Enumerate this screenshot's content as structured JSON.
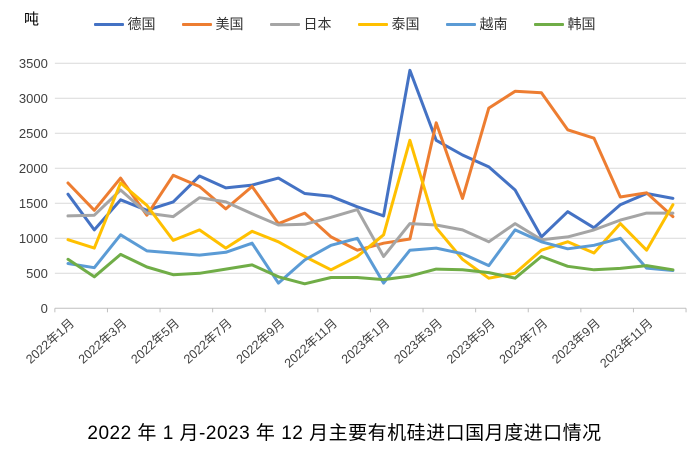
{
  "unit_label": "吨",
  "title": "2022 年 1 月-2023 年 12 月主要有机硅进口国月度进口情况",
  "chart_data": {
    "type": "line",
    "title": "2022 年 1 月-2023 年 12 月主要有机硅进口国月度进口情况",
    "ylabel": "吨",
    "ylim": [
      0,
      3500
    ],
    "y_ticks": [
      0,
      500,
      1000,
      1500,
      2000,
      2500,
      3000,
      3500
    ],
    "grid": true,
    "legend_position": "top",
    "x_tick_labels_shown": [
      "2022年1月",
      "2022年3月",
      "2022年5月",
      "2022年7月",
      "2022年9月",
      "2022年11月",
      "2023年1月",
      "2023年3月",
      "2023年5月",
      "2023年7月",
      "2023年9月",
      "2023年11月"
    ],
    "categories": [
      "2022年1月",
      "2022年2月",
      "2022年3月",
      "2022年4月",
      "2022年5月",
      "2022年6月",
      "2022年7月",
      "2022年8月",
      "2022年9月",
      "2022年10月",
      "2022年11月",
      "2022年12月",
      "2023年1月",
      "2023年2月",
      "2023年3月",
      "2023年4月",
      "2023年5月",
      "2023年6月",
      "2023年7月",
      "2023年8月",
      "2023年9月",
      "2023年10月",
      "2023年11月",
      "2023年12月"
    ],
    "series": [
      {
        "name": "德国",
        "id": "germany",
        "color": "#4472C4",
        "values": [
          1630,
          1120,
          1550,
          1400,
          1520,
          1890,
          1720,
          1760,
          1860,
          1640,
          1600,
          1450,
          1320,
          3400,
          2400,
          2190,
          2020,
          1690,
          1020,
          1380,
          1150,
          1480,
          1640,
          1570
        ]
      },
      {
        "name": "美国",
        "id": "usa",
        "color": "#ED7D31",
        "values": [
          1790,
          1400,
          1860,
          1330,
          1900,
          1740,
          1420,
          1740,
          1210,
          1360,
          1020,
          830,
          930,
          990,
          2650,
          1570,
          2860,
          3100,
          3080,
          2550,
          2430,
          1590,
          1650,
          1310
        ]
      },
      {
        "name": "日本",
        "id": "japan",
        "color": "#A5A5A5",
        "values": [
          1320,
          1330,
          1690,
          1360,
          1310,
          1580,
          1520,
          1350,
          1190,
          1200,
          1300,
          1410,
          740,
          1210,
          1190,
          1120,
          950,
          1210,
          980,
          1020,
          1120,
          1260,
          1360,
          1360
        ]
      },
      {
        "name": "泰国",
        "id": "thailand",
        "color": "#FFC000",
        "values": [
          980,
          860,
          1790,
          1470,
          970,
          1120,
          860,
          1100,
          950,
          740,
          550,
          740,
          1050,
          2400,
          1150,
          700,
          430,
          500,
          830,
          950,
          790,
          1210,
          830,
          1480
        ]
      },
      {
        "name": "越南",
        "id": "vietnam",
        "color": "#5B9BD5",
        "values": [
          640,
          580,
          1050,
          820,
          790,
          760,
          800,
          930,
          360,
          690,
          900,
          1000,
          360,
          830,
          860,
          780,
          610,
          1120,
          950,
          850,
          900,
          1000,
          575,
          540
        ]
      },
      {
        "name": "韩国",
        "id": "korea",
        "color": "#70AD47",
        "values": [
          700,
          450,
          770,
          590,
          480,
          500,
          560,
          620,
          450,
          350,
          440,
          440,
          410,
          460,
          560,
          550,
          510,
          430,
          740,
          600,
          550,
          570,
          610,
          550
        ]
      }
    ],
    "grid_color": "#D9D9D9",
    "axis_color": "#BFBFBF"
  }
}
